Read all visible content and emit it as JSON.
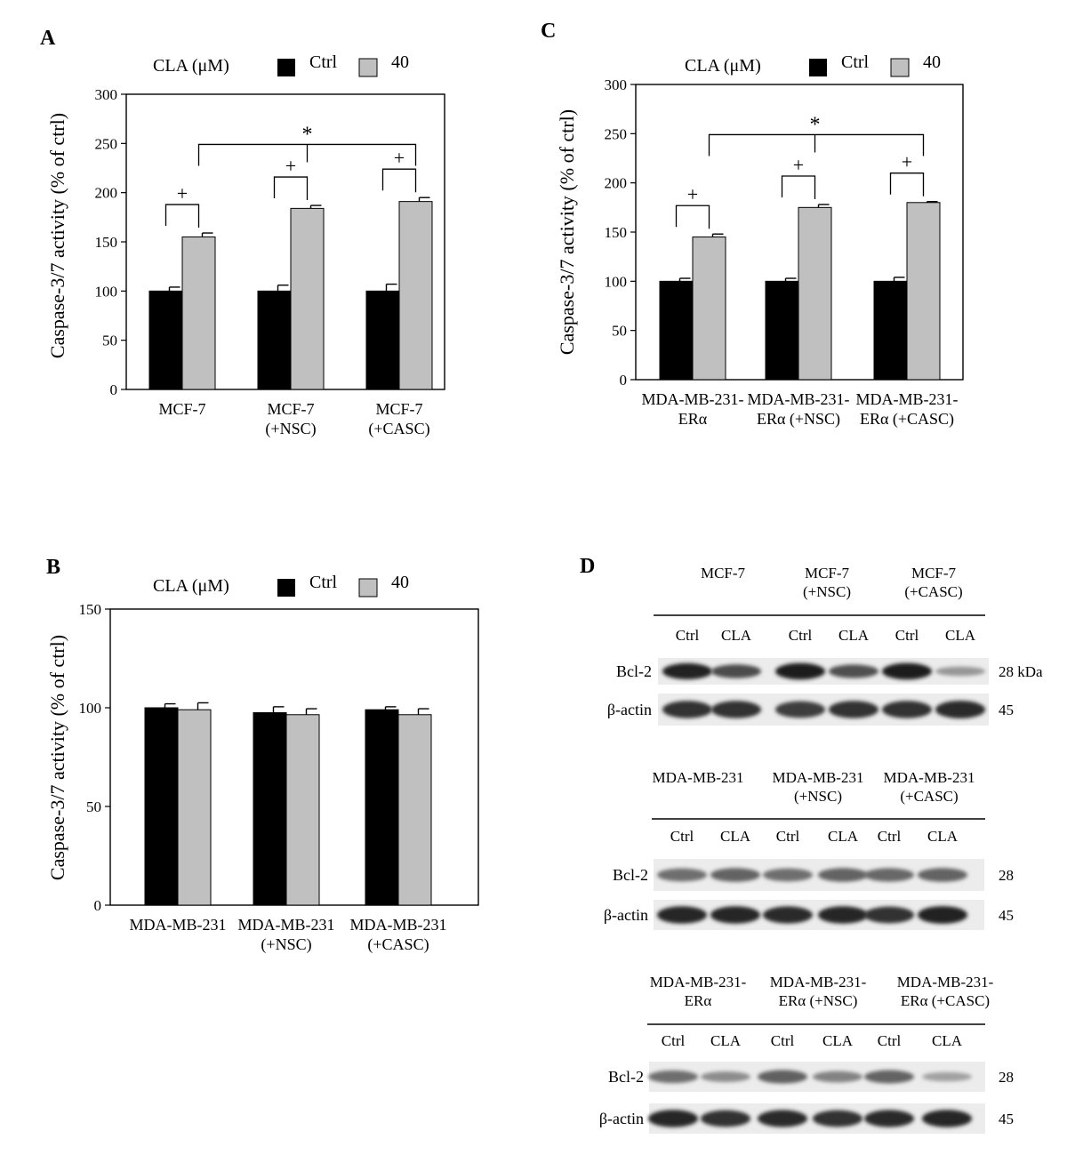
{
  "panel_labels": {
    "a": "A",
    "b": "B",
    "c": "C",
    "d": "D"
  },
  "legend": {
    "prefix": "CLA (μM)",
    "ctrl": "Ctrl",
    "treated": "40"
  },
  "colors": {
    "ctrl": "#000000",
    "treated": "#c0c0c0",
    "axis": "#000000"
  },
  "chart_data": [
    {
      "id": "A",
      "type": "bar",
      "title": "",
      "ylabel": "Caspase-3/7 activity (% of ctrl)",
      "xlabel": "",
      "ylim": [
        0,
        300
      ],
      "yticks": [
        0,
        50,
        100,
        150,
        200,
        250,
        300
      ],
      "categories": [
        [
          "MCF-7"
        ],
        [
          "MCF-7",
          "(+NSC)"
        ],
        [
          "MCF-7",
          "(+CASC)"
        ]
      ],
      "series": [
        {
          "name": "Ctrl",
          "values": [
            100,
            100,
            100
          ],
          "errors": [
            4,
            6,
            7
          ]
        },
        {
          "name": "40",
          "values": [
            155,
            184,
            191
          ],
          "errors": [
            4,
            3,
            4
          ]
        }
      ],
      "significance": {
        "pair_marker": "+",
        "between_groups_marker": "*"
      },
      "legend_position": "top"
    },
    {
      "id": "B",
      "type": "bar",
      "title": "",
      "ylabel": "Caspase-3/7 activity (% of ctrl)",
      "xlabel": "",
      "ylim": [
        0,
        150
      ],
      "yticks": [
        0,
        50,
        100,
        150
      ],
      "categories": [
        [
          "MDA-MB-231"
        ],
        [
          "MDA-MB-231",
          "(+NSC)"
        ],
        [
          "MDA-MB-231",
          "(+CASC)"
        ]
      ],
      "series": [
        {
          "name": "Ctrl",
          "values": [
            100,
            97.5,
            99
          ],
          "errors": [
            2,
            3,
            1.5
          ]
        },
        {
          "name": "40",
          "values": [
            99,
            96.5,
            96.5
          ],
          "errors": [
            3.5,
            3,
            3
          ]
        }
      ],
      "legend_position": "top"
    },
    {
      "id": "C",
      "type": "bar",
      "title": "",
      "ylabel": "Caspase-3/7 activity (% of ctrl)",
      "xlabel": "",
      "ylim": [
        0,
        300
      ],
      "yticks": [
        0,
        50,
        100,
        150,
        200,
        250,
        300
      ],
      "categories": [
        [
          "MDA-MB-231-",
          "ERα"
        ],
        [
          "MDA-MB-231-",
          "ERα (+NSC)"
        ],
        [
          "MDA-MB-231-",
          "ERα (+CASC)"
        ]
      ],
      "series": [
        {
          "name": "Ctrl",
          "values": [
            100,
            100,
            100
          ],
          "errors": [
            3,
            3,
            4
          ]
        },
        {
          "name": "40",
          "values": [
            145,
            175,
            180
          ],
          "errors": [
            3,
            3,
            1
          ]
        }
      ],
      "significance": {
        "pair_marker": "+",
        "between_groups_marker": "*"
      },
      "legend_position": "top"
    }
  ],
  "western_blots": [
    {
      "groups": [
        [
          "MCF-7"
        ],
        [
          "MCF-7",
          "(+NSC)"
        ],
        [
          "MCF-7",
          "(+CASC)"
        ]
      ],
      "lanes": [
        "Ctrl",
        "CLA",
        "Ctrl",
        "CLA",
        "Ctrl",
        "CLA"
      ],
      "rows": [
        {
          "label": "Bcl-2",
          "size": "28 kDa",
          "intensity": [
            0.92,
            0.72,
            0.95,
            0.7,
            0.95,
            0.35
          ]
        },
        {
          "label": "β-actin",
          "size": "45",
          "intensity": [
            0.85,
            0.85,
            0.8,
            0.85,
            0.85,
            0.88
          ]
        }
      ]
    },
    {
      "groups": [
        [
          "MDA-MB-231"
        ],
        [
          "MDA-MB-231",
          "(+NSC)"
        ],
        [
          "MDA-MB-231",
          "(+CASC)"
        ]
      ],
      "lanes": [
        "Ctrl",
        "CLA",
        "Ctrl",
        "CLA",
        "Ctrl",
        "CLA"
      ],
      "rows": [
        {
          "label": "Bcl-2",
          "size": "28",
          "intensity": [
            0.55,
            0.6,
            0.55,
            0.6,
            0.58,
            0.6
          ]
        },
        {
          "label": "β-actin",
          "size": "45",
          "intensity": [
            0.9,
            0.9,
            0.88,
            0.9,
            0.85,
            0.92
          ]
        }
      ]
    },
    {
      "groups": [
        [
          "MDA-MB-231-",
          "ERα"
        ],
        [
          "MDA-MB-231-",
          "ERα (+NSC)"
        ],
        [
          "MDA-MB-231-",
          "ERα (+CASC)"
        ]
      ],
      "lanes": [
        "Ctrl",
        "CLA",
        "Ctrl",
        "CLA",
        "Ctrl",
        "CLA"
      ],
      "rows": [
        {
          "label": "Bcl-2",
          "size": "28",
          "intensity": [
            0.55,
            0.4,
            0.62,
            0.45,
            0.6,
            0.3
          ]
        },
        {
          "label": "β-actin",
          "size": "45",
          "intensity": [
            0.9,
            0.85,
            0.88,
            0.85,
            0.88,
            0.9
          ]
        }
      ]
    }
  ]
}
